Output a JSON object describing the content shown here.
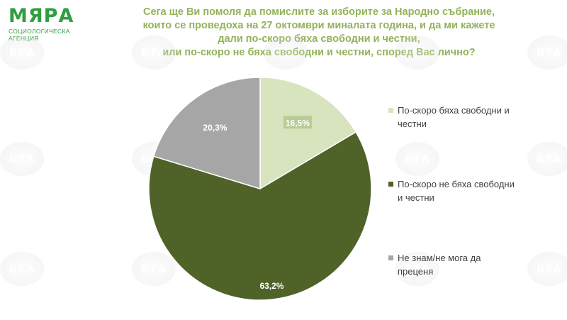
{
  "logo": {
    "name": "МЯРА",
    "subtitle": "СОЦИОЛОГИЧЕСКА АГЕНЦИЯ",
    "color": "#2f9e3f"
  },
  "watermark": {
    "text": "БТА"
  },
  "chart_data": {
    "type": "pie",
    "title_lines": [
      "Сега ще Ви помоля да помислите за изборите за Народно събрание,",
      "които се проведоха на 27 октомври миналата година, и да ми кажете",
      "дали по-скоро бяха свободни и честни,",
      "или по-скоро не бяха свободни и честни, според Вас лично?"
    ],
    "slices": [
      {
        "label": "По-скоро бяха свободни и честни",
        "value": 16.5,
        "display": "16,5%",
        "color": "#d7e4bd"
      },
      {
        "label": "По-скоро не бяха свободни и честни",
        "value": 63.2,
        "display": "63,2%",
        "color": "#4f6228"
      },
      {
        "label": "Не знам/не мога да преценя",
        "value": 20.3,
        "display": "20,3%",
        "color": "#a6a6a6"
      }
    ],
    "legend_position": "right",
    "start_angle": "12 o'clock, clockwise"
  }
}
